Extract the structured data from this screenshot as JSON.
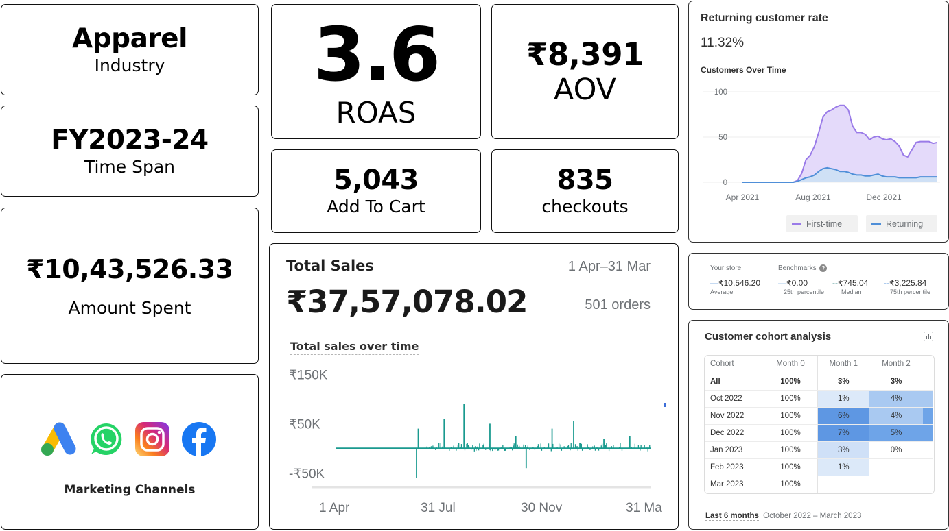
{
  "industry": {
    "value": "Apparel",
    "label": "Industry"
  },
  "timespan": {
    "value": "FY2023-24",
    "label": "Time Span"
  },
  "spent": {
    "value": "₹10,43,526.33",
    "label": "Amount Spent"
  },
  "channels": {
    "label": "Marketing Channels",
    "icons": [
      "google-ads-icon",
      "whatsapp-icon",
      "instagram-icon",
      "facebook-icon"
    ]
  },
  "roas": {
    "value": "3.6",
    "label": "ROAS"
  },
  "aov": {
    "value": "₹8,391",
    "label": "AOV"
  },
  "cart": {
    "value": "5,043",
    "label": "Add To Cart"
  },
  "checkouts": {
    "value": "835",
    "label": "checkouts"
  },
  "sales": {
    "title": "Total Sales",
    "range": "1 Apr–31 Mar",
    "total": "₹37,57,078.02",
    "orders": "501 orders",
    "subtitle": "Total sales over time"
  },
  "returning": {
    "title": "Returning customer rate",
    "rate": "11.32%",
    "chart_title": "Customers Over Time"
  },
  "benchmarks": {
    "store_label": "Your store",
    "store_value": "₹10,546.20",
    "store_sub": "Average",
    "bench_label": "Benchmarks",
    "items": [
      {
        "value": "₹0.00",
        "sub": "25th percentile"
      },
      {
        "value": "₹745.04",
        "sub": "Median"
      },
      {
        "value": "₹3,225.84",
        "sub": "75th percentile"
      }
    ]
  },
  "cohort": {
    "title": "Customer cohort analysis",
    "headers": [
      "Cohort",
      "Month 0",
      "Month 1",
      "Month 2"
    ],
    "rows": [
      {
        "cohort": "All",
        "m0": "100%",
        "m1": "3%",
        "m2": "3%"
      },
      {
        "cohort": "Oct 2022",
        "m0": "100%",
        "m1": "1%",
        "m2": "4%"
      },
      {
        "cohort": "Nov 2022",
        "m0": "100%",
        "m1": "6%",
        "m2": "4%"
      },
      {
        "cohort": "Dec 2022",
        "m0": "100%",
        "m1": "7%",
        "m2": "5%"
      },
      {
        "cohort": "Jan 2023",
        "m0": "100%",
        "m1": "3%",
        "m2": "0%"
      },
      {
        "cohort": "Feb 2023",
        "m0": "100%",
        "m1": "1%",
        "m2": ""
      },
      {
        "cohort": "Mar 2023",
        "m0": "100%",
        "m1": "",
        "m2": ""
      }
    ],
    "footer_label": "Last 6 months",
    "footer_range": "October 2022 – March 2023"
  },
  "chart_data": [
    {
      "type": "bar",
      "title": "Total sales over time",
      "x_tick_labels": [
        "1 Apr",
        "31 Jul",
        "30 Nov",
        "31 Ma"
      ],
      "y_tick_labels": [
        "₹150K",
        "₹50K",
        "-₹50K"
      ],
      "y_ticks": [
        150000,
        50000,
        -50000
      ],
      "ylim": [
        -80000,
        170000
      ],
      "n_days": 365,
      "spikes": [
        {
          "day": 95,
          "value": 40000
        },
        {
          "day": 93,
          "value": -60000
        },
        {
          "day": 125,
          "value": 60000
        },
        {
          "day": 148,
          "value": 90000
        },
        {
          "day": 178,
          "value": 50000
        },
        {
          "day": 208,
          "value": 25000
        },
        {
          "day": 220,
          "value": -40000
        },
        {
          "day": 250,
          "value": 40000
        },
        {
          "day": 275,
          "value": 55000
        },
        {
          "day": 310,
          "value": 20000
        },
        {
          "day": 340,
          "value": 25000
        }
      ],
      "noise_start_day": 105,
      "noise_amp": 18000,
      "color": "#1a9a8f"
    },
    {
      "type": "area",
      "title": "Customers Over Time",
      "x_tick_labels": [
        "Apr 2021",
        "Aug 2021",
        "Dec 2021"
      ],
      "y_tick_labels": [
        "100",
        "50",
        "0"
      ],
      "y_ticks": [
        100,
        50,
        0
      ],
      "ylim": [
        0,
        100
      ],
      "series": [
        {
          "name": "First-time",
          "color": "#9a7be8",
          "values": [
            0,
            0,
            0,
            0,
            0,
            0,
            0,
            0,
            0,
            0,
            0,
            0,
            0,
            2,
            10,
            25,
            30,
            40,
            55,
            72,
            78,
            80,
            83,
            85,
            85,
            80,
            62,
            55,
            55,
            53,
            47,
            50,
            51,
            48,
            47,
            48,
            45,
            40,
            30,
            28,
            36,
            44,
            45,
            45,
            45,
            43,
            44
          ]
        },
        {
          "name": "Returning",
          "color": "#4f8fd8",
          "values": [
            0,
            0,
            0,
            0,
            0,
            0,
            0,
            0,
            0,
            0,
            0,
            0,
            0,
            1,
            3,
            5,
            6,
            8,
            12,
            15,
            16,
            15,
            14,
            12,
            12,
            11,
            9,
            8,
            8,
            7,
            7,
            8,
            9,
            7,
            6,
            6,
            6,
            5,
            5,
            5,
            5,
            5,
            6,
            6,
            6,
            6,
            6
          ]
        }
      ]
    }
  ]
}
